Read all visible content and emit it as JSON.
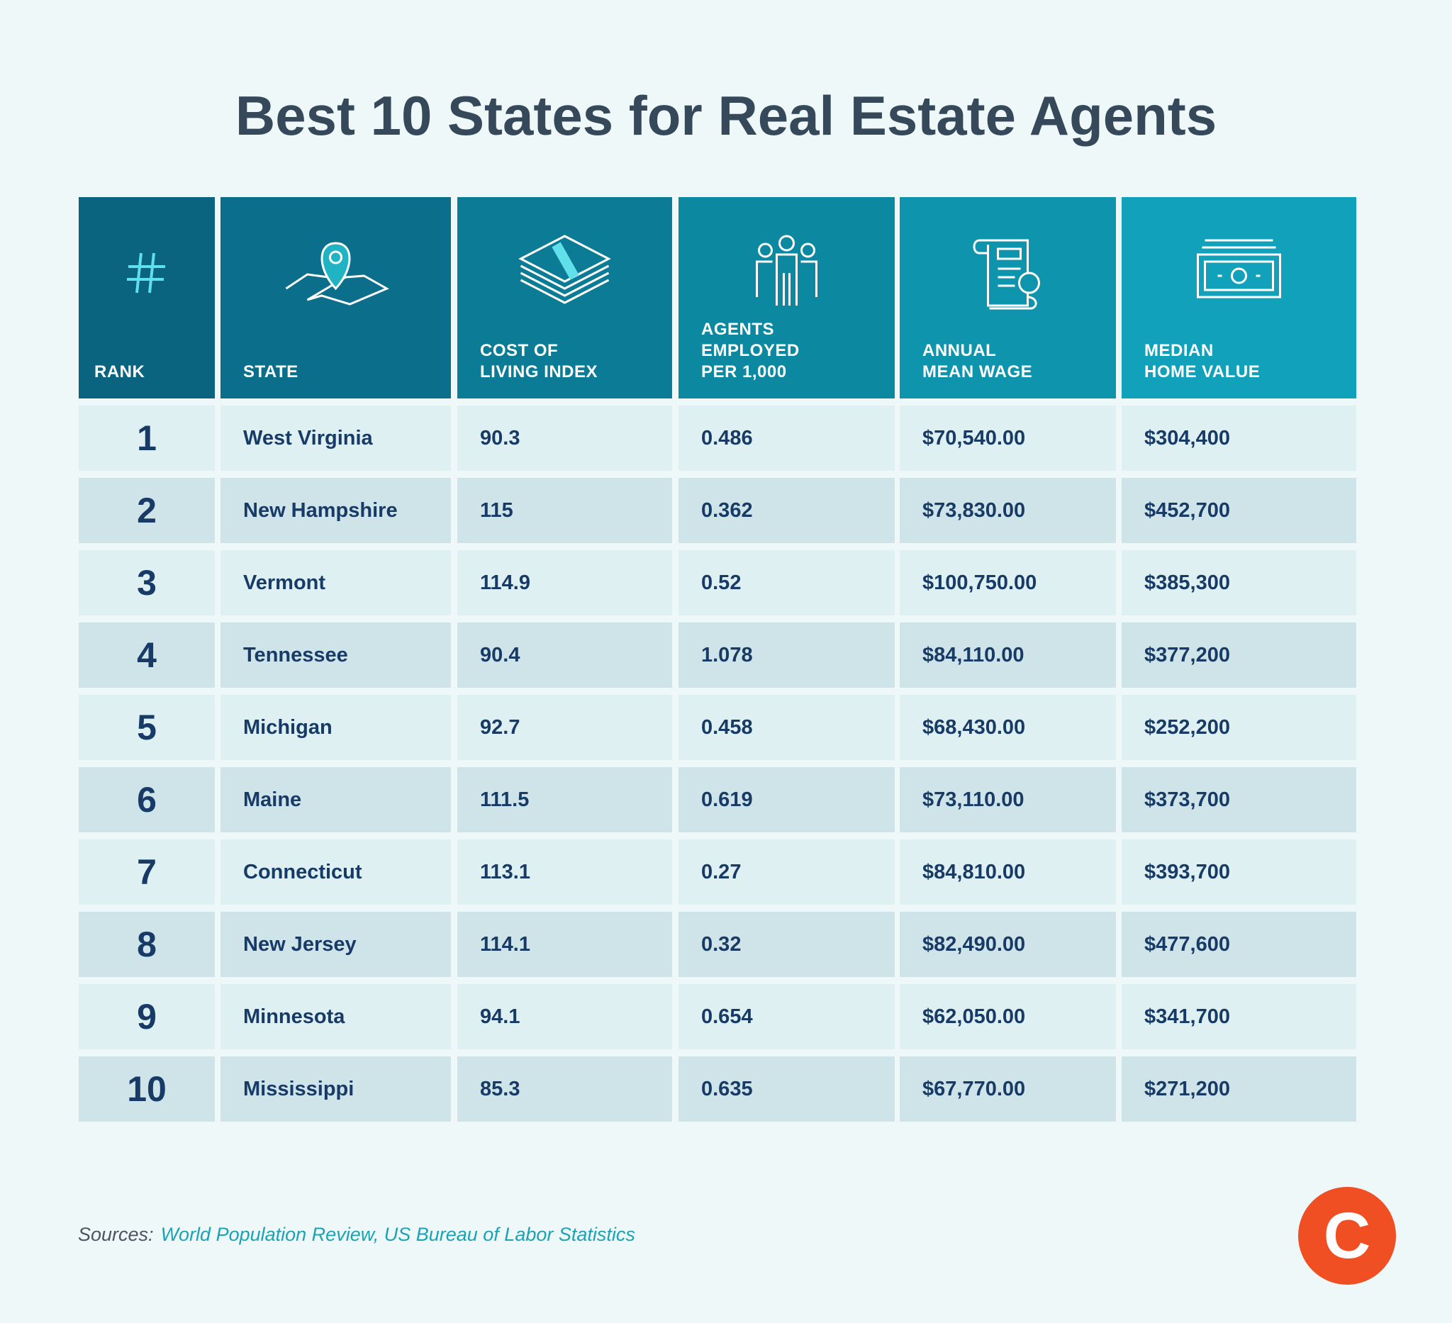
{
  "title": "Best 10 States for Real Estate Agents",
  "table": {
    "header": [
      [
        "RANK"
      ],
      [
        "STATE"
      ],
      [
        "COST OF",
        "LIVING INDEX"
      ],
      [
        "AGENTS",
        "EMPLOYED",
        "PER 1,000"
      ],
      [
        "ANNUAL",
        "MEAN WAGE"
      ],
      [
        "MEDIAN",
        "HOME VALUE"
      ]
    ],
    "rows": [
      [
        "1",
        "West Virginia",
        "90.3",
        "0.486",
        "$70,540.00",
        "$304,400"
      ],
      [
        "2",
        "New Hampshire",
        "115",
        "0.362",
        "$73,830.00",
        "$452,700"
      ],
      [
        "3",
        "Vermont",
        "114.9",
        "0.52",
        "$100,750.00",
        "$385,300"
      ],
      [
        "4",
        "Tennessee",
        "90.4",
        "1.078",
        "$84,110.00",
        "$377,200"
      ],
      [
        "5",
        "Michigan",
        "92.7",
        "0.458",
        "$68,430.00",
        "$252,200"
      ],
      [
        "6",
        "Maine",
        "111.5",
        "0.619",
        "$73,110.00",
        "$373,700"
      ],
      [
        "7",
        "Connecticut",
        "113.1",
        "0.27",
        "$84,810.00",
        "$393,700"
      ],
      [
        "8",
        "New Jersey",
        "114.1",
        "0.32",
        "$82,490.00",
        "$477,600"
      ],
      [
        "9",
        "Minnesota",
        "94.1",
        "0.654",
        "$62,050.00",
        "$341,700"
      ],
      [
        "10",
        "Mississippi",
        "85.3",
        "0.635",
        "$67,770.00",
        "$271,200"
      ]
    ]
  },
  "footer": {
    "label": "Sources:",
    "sources": "World Population Review, US Bureau of Labor Statistics"
  },
  "logo": "C"
}
